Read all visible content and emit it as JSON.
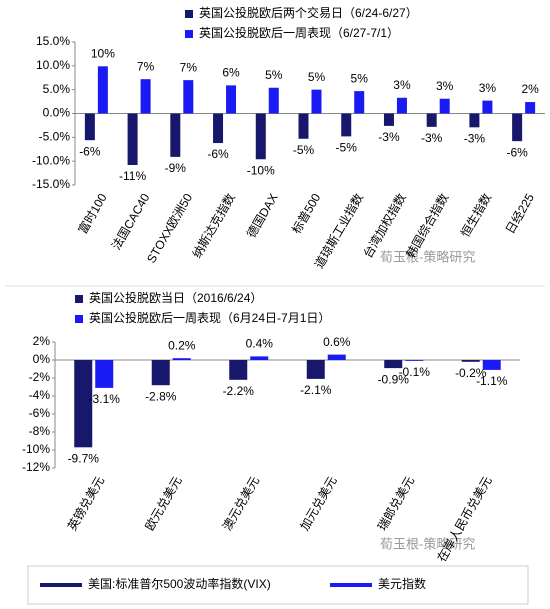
{
  "chart_data": [
    {
      "type": "bar",
      "categories": [
        "富时100",
        "法国CAC40",
        "STOXX欧洲50",
        "纳斯达克指数",
        "德国DAX",
        "标普500",
        "道琼斯工业指数",
        "台湾加权指数",
        "韩国综合指数",
        "恒生指数",
        "日经225"
      ],
      "series": [
        {
          "name": "英国公投脱欧后两个交易日（6/24-6/27）",
          "color": "#17176b",
          "values": [
            -5.6,
            -10.8,
            -9.1,
            -6.2,
            -9.6,
            -5.3,
            -4.8,
            -2.6,
            -2.8,
            -2.9,
            -5.8
          ],
          "value_labels": [
            "-6%",
            "-11%",
            "-9%",
            "-6%",
            "-10%",
            "-5%",
            "-5%",
            "-3%",
            "-3%",
            "-3%",
            "-6%"
          ]
        },
        {
          "name": "英国公投脱欧后一周表现（6/27-7/1）",
          "color": "#1a1af5",
          "values": [
            9.9,
            7.2,
            7.0,
            5.9,
            5.4,
            5.0,
            4.7,
            3.3,
            3.1,
            2.7,
            2.4
          ],
          "value_labels": [
            "10%",
            "7%",
            "7%",
            "6%",
            "5%",
            "5%",
            "5%",
            "3%",
            "3%",
            "3%",
            "2%"
          ]
        }
      ],
      "ylim": [
        -15,
        15
      ],
      "yticks": [
        {
          "value": -15,
          "label": "-15.0%"
        },
        {
          "value": -10,
          "label": "-10.0%"
        },
        {
          "value": -5,
          "label": "-5.0%"
        },
        {
          "value": 0,
          "label": "0.0%"
        },
        {
          "value": 5,
          "label": "5.0%"
        },
        {
          "value": 10,
          "label": "10.0%"
        },
        {
          "value": 15,
          "label": "15.0%"
        }
      ]
    },
    {
      "type": "bar",
      "categories": [
        "英镑兑美元",
        "欧元兑美元",
        "澳元兑美元",
        "加元兑美元",
        "瑞郎兑美元",
        "在岸人民币兑美元"
      ],
      "series": [
        {
          "name": "英国公投脱欧当日（2016/6/24）",
          "color": "#17176b",
          "values": [
            -9.7,
            -2.8,
            -2.2,
            -2.1,
            -0.9,
            -0.2
          ],
          "value_labels": [
            "-9.7%",
            "-2.8%",
            "-2.2%",
            "-2.1%",
            "-0.9%",
            "-0.2%"
          ]
        },
        {
          "name": "英国公投脱欧后一周表现（6月24日-7月1日）",
          "color": "#1a1af5",
          "values": [
            -3.1,
            0.2,
            0.4,
            0.6,
            -0.1,
            -1.1
          ],
          "value_labels": [
            "-3.1%",
            "0.2%",
            "0.4%",
            "0.6%",
            "-0.1%",
            "-1.1%"
          ]
        }
      ],
      "ylim": [
        -12,
        2
      ],
      "yticks": [
        {
          "value": -12,
          "label": "-12%"
        },
        {
          "value": -10,
          "label": "-10%"
        },
        {
          "value": -8,
          "label": "-8%"
        },
        {
          "value": -6,
          "label": "-6%"
        },
        {
          "value": -4,
          "label": "-4%"
        },
        {
          "value": -2,
          "label": "-2%"
        },
        {
          "value": 0,
          "label": "0%"
        },
        {
          "value": 2,
          "label": "2%"
        }
      ]
    }
  ],
  "watermark": "荀玉根-策略研究",
  "footer_legend": [
    {
      "name": "美国:标准普尔500波动率指数(VIX)",
      "color": "#17176b"
    },
    {
      "name": "美元指数",
      "color": "#1a1af5"
    }
  ]
}
